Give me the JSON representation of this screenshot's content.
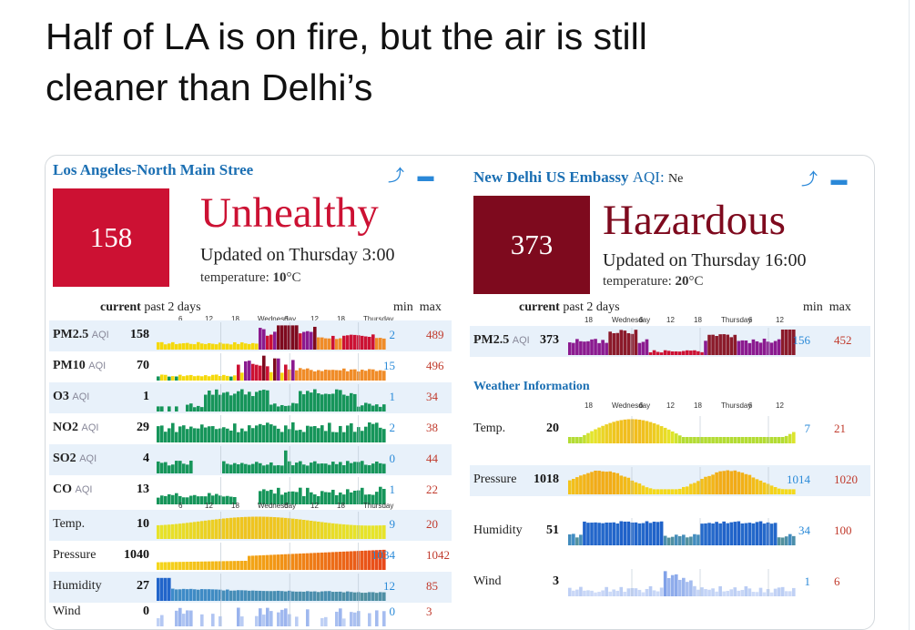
{
  "tweet": {
    "line1": "Half of LA is on fire, but the air is still",
    "line2": "cleaner than Delhi’s"
  },
  "colors": {
    "unhealthy": "#cc1133",
    "hazardous": "#7e0a1e",
    "link": "#1b6fb3",
    "min": "#2a8ad8",
    "max": "#c0392b"
  },
  "icons": [
    "share-icon",
    "message-icon"
  ],
  "la": {
    "station": "Los Angeles-North Main Stree",
    "aqi": "158",
    "status": "Unhealthy",
    "updated": "Updated on Thursday 3:00",
    "temperature_label": "temperature:",
    "temperature_value": "10",
    "temperature_unit": "°C",
    "header": {
      "current": "current",
      "past": "past 2 days",
      "min": "min",
      "max": "max"
    },
    "ticks": [
      "6",
      "12",
      "18",
      "Wednesday",
      "6",
      "12",
      "18",
      "Thursday"
    ],
    "rows": [
      {
        "label": "PM2.5",
        "unit": "AQI",
        "current": "158",
        "min": "2",
        "max": "489"
      },
      {
        "label": "PM10",
        "unit": "AQI",
        "current": "70",
        "min": "15",
        "max": "496"
      },
      {
        "label": "O3",
        "unit": "AQI",
        "current": "1",
        "min": "1",
        "max": "34"
      },
      {
        "label": "NO2",
        "unit": "AQI",
        "current": "29",
        "min": "2",
        "max": "38"
      },
      {
        "label": "SO2",
        "unit": "AQI",
        "current": "4",
        "min": "0",
        "max": "44"
      },
      {
        "label": "CO",
        "unit": "AQI",
        "current": "13",
        "min": "1",
        "max": "22"
      },
      {
        "label": "Temp.",
        "unit": "",
        "current": "10",
        "min": "9",
        "max": "20"
      },
      {
        "label": "Pressure",
        "unit": "",
        "current": "1040",
        "min": "1034",
        "max": "1042"
      },
      {
        "label": "Humidity",
        "unit": "",
        "current": "27",
        "min": "12",
        "max": "85"
      },
      {
        "label": "Wind",
        "unit": "",
        "current": "0",
        "min": "0",
        "max": "3"
      }
    ]
  },
  "delhi": {
    "station": "New Delhi US Embassy",
    "aqi_label": "AQI:",
    "aqi_suffix": "Ne",
    "aqi": "373",
    "status": "Hazardous",
    "updated": "Updated on Thursday 16:00",
    "temperature_label": "temperature:",
    "temperature_value": "20",
    "temperature_unit": "°C",
    "header": {
      "current": "current",
      "past": "past 2 days",
      "min": "min",
      "max": "max"
    },
    "ticks": [
      "18",
      "Wednesday",
      "6",
      "12",
      "18",
      "Thursday",
      "6",
      "12"
    ],
    "weather_title": "Weather Information",
    "rows": [
      {
        "label": "PM2.5",
        "unit": "AQI",
        "current": "373",
        "min": "156",
        "max": "452"
      },
      {
        "label": "Temp.",
        "unit": "",
        "current": "20",
        "min": "7",
        "max": "21"
      },
      {
        "label": "Pressure",
        "unit": "",
        "current": "1018",
        "min": "1014",
        "max": "1020"
      },
      {
        "label": "Humidity",
        "unit": "",
        "current": "51",
        "min": "34",
        "max": "100"
      },
      {
        "label": "Wind",
        "unit": "",
        "current": "3",
        "min": "1",
        "max": "6"
      }
    ]
  }
}
